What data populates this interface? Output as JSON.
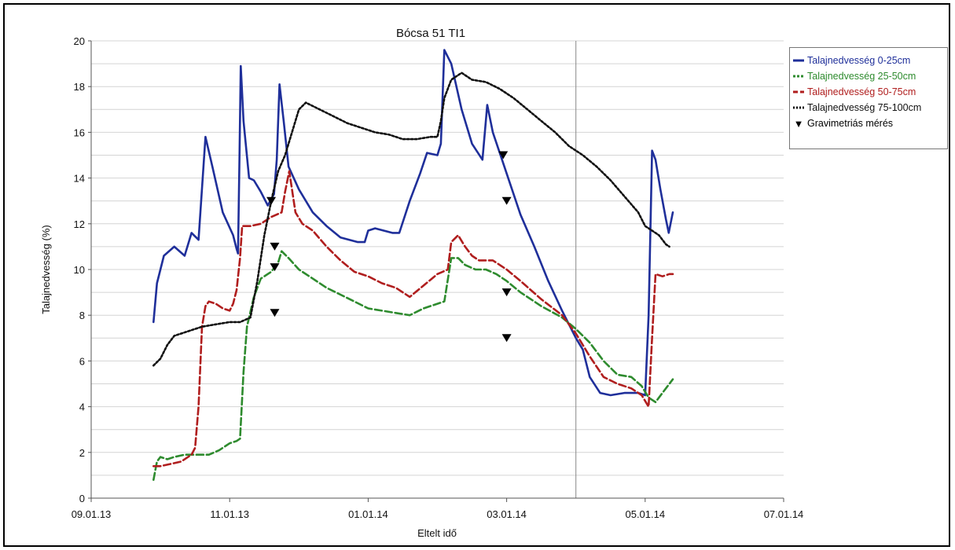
{
  "chart_data": {
    "type": "line",
    "title": "Bócsa 51 TI1",
    "xlabel": "Eltelt idő",
    "ylabel": "Talajnedvesség (%)",
    "x_axis": {
      "ticks": [
        "09.01.13",
        "11.01.13",
        "01.01.14",
        "03.01.14",
        "05.01.14",
        "07.01.14"
      ],
      "range_months": [
        0,
        10
      ],
      "vertical_marker_month": 7.0
    },
    "y_axis": {
      "ylim": [
        0,
        20
      ],
      "ticks": [
        0,
        2,
        4,
        6,
        8,
        10,
        12,
        14,
        16,
        18,
        20
      ]
    },
    "grid": "horizontal every 1 unit",
    "legend_position": "right",
    "series": [
      {
        "name": "Talajnedvesség 0-25cm",
        "color": "#1f2f9a",
        "style": "solid",
        "points": [
          [
            0.9,
            7.7
          ],
          [
            0.95,
            9.4
          ],
          [
            1.05,
            10.6
          ],
          [
            1.2,
            11.0
          ],
          [
            1.35,
            10.6
          ],
          [
            1.45,
            11.6
          ],
          [
            1.55,
            11.3
          ],
          [
            1.65,
            15.8
          ],
          [
            1.75,
            14.5
          ],
          [
            1.9,
            12.5
          ],
          [
            2.05,
            11.5
          ],
          [
            2.1,
            10.9
          ],
          [
            2.12,
            10.7
          ],
          [
            2.14,
            14.5
          ],
          [
            2.16,
            18.9
          ],
          [
            2.2,
            16.5
          ],
          [
            2.28,
            14.0
          ],
          [
            2.35,
            13.9
          ],
          [
            2.45,
            13.4
          ],
          [
            2.55,
            12.8
          ],
          [
            2.64,
            13.3
          ],
          [
            2.68,
            14.8
          ],
          [
            2.72,
            18.1
          ],
          [
            2.78,
            16.5
          ],
          [
            2.85,
            14.5
          ],
          [
            3.0,
            13.5
          ],
          [
            3.2,
            12.5
          ],
          [
            3.4,
            11.9
          ],
          [
            3.6,
            11.4
          ],
          [
            3.85,
            11.2
          ],
          [
            3.95,
            11.2
          ],
          [
            4.0,
            11.7
          ],
          [
            4.1,
            11.8
          ],
          [
            4.35,
            11.6
          ],
          [
            4.45,
            11.6
          ],
          [
            4.6,
            13.0
          ],
          [
            4.75,
            14.2
          ],
          [
            4.85,
            15.1
          ],
          [
            5.0,
            15.0
          ],
          [
            5.05,
            15.5
          ],
          [
            5.1,
            19.6
          ],
          [
            5.2,
            19.0
          ],
          [
            5.35,
            17.0
          ],
          [
            5.5,
            15.5
          ],
          [
            5.65,
            14.8
          ],
          [
            5.72,
            17.2
          ],
          [
            5.8,
            16.0
          ],
          [
            6.0,
            14.2
          ],
          [
            6.2,
            12.4
          ],
          [
            6.4,
            11.0
          ],
          [
            6.6,
            9.5
          ],
          [
            6.8,
            8.2
          ],
          [
            7.0,
            7.0
          ],
          [
            7.1,
            6.5
          ],
          [
            7.2,
            5.3
          ],
          [
            7.35,
            4.6
          ],
          [
            7.5,
            4.5
          ],
          [
            7.7,
            4.6
          ],
          [
            7.9,
            4.6
          ],
          [
            8.0,
            4.5
          ],
          [
            8.05,
            8.0
          ],
          [
            8.1,
            15.2
          ],
          [
            8.15,
            14.8
          ],
          [
            8.22,
            13.5
          ],
          [
            8.3,
            12.2
          ],
          [
            8.34,
            11.6
          ],
          [
            8.4,
            12.5
          ]
        ]
      },
      {
        "name": "Talajnedvesség 25-50cm",
        "color": "#2e8b2e",
        "style": "dashed",
        "points": [
          [
            0.9,
            0.8
          ],
          [
            0.95,
            1.6
          ],
          [
            1.0,
            1.8
          ],
          [
            1.1,
            1.7
          ],
          [
            1.2,
            1.8
          ],
          [
            1.35,
            1.9
          ],
          [
            1.5,
            1.9
          ],
          [
            1.7,
            1.9
          ],
          [
            1.85,
            2.1
          ],
          [
            2.0,
            2.4
          ],
          [
            2.1,
            2.5
          ],
          [
            2.15,
            2.6
          ],
          [
            2.2,
            5.5
          ],
          [
            2.25,
            7.5
          ],
          [
            2.35,
            8.8
          ],
          [
            2.45,
            9.6
          ],
          [
            2.6,
            9.9
          ],
          [
            2.7,
            10.3
          ],
          [
            2.75,
            10.8
          ],
          [
            2.85,
            10.5
          ],
          [
            3.0,
            10.0
          ],
          [
            3.2,
            9.6
          ],
          [
            3.4,
            9.2
          ],
          [
            3.6,
            8.9
          ],
          [
            3.8,
            8.6
          ],
          [
            4.0,
            8.3
          ],
          [
            4.2,
            8.2
          ],
          [
            4.4,
            8.1
          ],
          [
            4.6,
            8.0
          ],
          [
            4.8,
            8.3
          ],
          [
            5.0,
            8.5
          ],
          [
            5.1,
            8.6
          ],
          [
            5.2,
            10.5
          ],
          [
            5.3,
            10.5
          ],
          [
            5.4,
            10.2
          ],
          [
            5.55,
            10.0
          ],
          [
            5.7,
            10.0
          ],
          [
            5.85,
            9.8
          ],
          [
            6.0,
            9.5
          ],
          [
            6.2,
            9.0
          ],
          [
            6.5,
            8.4
          ],
          [
            6.8,
            7.9
          ],
          [
            7.0,
            7.4
          ],
          [
            7.2,
            6.8
          ],
          [
            7.4,
            6.0
          ],
          [
            7.6,
            5.4
          ],
          [
            7.8,
            5.3
          ],
          [
            7.95,
            4.9
          ],
          [
            8.05,
            4.4
          ],
          [
            8.15,
            4.2
          ],
          [
            8.25,
            4.6
          ],
          [
            8.35,
            5.0
          ],
          [
            8.4,
            5.2
          ]
        ]
      },
      {
        "name": "Talajnedvesség 50-75cm",
        "color": "#b01e1e",
        "style": "dashed",
        "points": [
          [
            0.9,
            1.4
          ],
          [
            1.0,
            1.4
          ],
          [
            1.15,
            1.5
          ],
          [
            1.3,
            1.6
          ],
          [
            1.45,
            1.9
          ],
          [
            1.5,
            2.2
          ],
          [
            1.55,
            4.0
          ],
          [
            1.6,
            7.5
          ],
          [
            1.65,
            8.4
          ],
          [
            1.7,
            8.6
          ],
          [
            1.8,
            8.5
          ],
          [
            1.9,
            8.3
          ],
          [
            2.0,
            8.2
          ],
          [
            2.05,
            8.5
          ],
          [
            2.1,
            9.1
          ],
          [
            2.15,
            10.5
          ],
          [
            2.18,
            11.9
          ],
          [
            2.3,
            11.9
          ],
          [
            2.45,
            12.0
          ],
          [
            2.6,
            12.3
          ],
          [
            2.75,
            12.5
          ],
          [
            2.8,
            13.4
          ],
          [
            2.86,
            14.3
          ],
          [
            2.95,
            12.5
          ],
          [
            3.05,
            12.0
          ],
          [
            3.2,
            11.7
          ],
          [
            3.4,
            11.0
          ],
          [
            3.6,
            10.4
          ],
          [
            3.8,
            9.9
          ],
          [
            4.0,
            9.7
          ],
          [
            4.2,
            9.4
          ],
          [
            4.4,
            9.2
          ],
          [
            4.6,
            8.8
          ],
          [
            4.8,
            9.3
          ],
          [
            5.0,
            9.8
          ],
          [
            5.15,
            10.0
          ],
          [
            5.2,
            11.2
          ],
          [
            5.3,
            11.5
          ],
          [
            5.4,
            11.0
          ],
          [
            5.5,
            10.6
          ],
          [
            5.6,
            10.4
          ],
          [
            5.8,
            10.4
          ],
          [
            6.0,
            10.0
          ],
          [
            6.2,
            9.5
          ],
          [
            6.5,
            8.7
          ],
          [
            6.8,
            8.0
          ],
          [
            7.0,
            7.2
          ],
          [
            7.2,
            6.2
          ],
          [
            7.4,
            5.3
          ],
          [
            7.6,
            5.0
          ],
          [
            7.8,
            4.8
          ],
          [
            7.95,
            4.5
          ],
          [
            8.05,
            4.0
          ],
          [
            8.1,
            7.0
          ],
          [
            8.15,
            9.8
          ],
          [
            8.25,
            9.7
          ],
          [
            8.35,
            9.8
          ],
          [
            8.4,
            9.8
          ]
        ]
      },
      {
        "name": "Talajnedvesség 75-100cm",
        "color": "#111111",
        "style": "dotted",
        "points": [
          [
            0.9,
            5.8
          ],
          [
            1.0,
            6.1
          ],
          [
            1.1,
            6.7
          ],
          [
            1.2,
            7.1
          ],
          [
            1.4,
            7.3
          ],
          [
            1.6,
            7.5
          ],
          [
            1.8,
            7.6
          ],
          [
            2.0,
            7.7
          ],
          [
            2.15,
            7.7
          ],
          [
            2.3,
            7.9
          ],
          [
            2.4,
            9.5
          ],
          [
            2.5,
            11.5
          ],
          [
            2.6,
            13.0
          ],
          [
            2.7,
            14.3
          ],
          [
            2.8,
            15.0
          ],
          [
            2.9,
            16.0
          ],
          [
            3.0,
            17.0
          ],
          [
            3.1,
            17.3
          ],
          [
            3.3,
            17.0
          ],
          [
            3.5,
            16.7
          ],
          [
            3.7,
            16.4
          ],
          [
            3.9,
            16.2
          ],
          [
            4.1,
            16.0
          ],
          [
            4.3,
            15.9
          ],
          [
            4.5,
            15.7
          ],
          [
            4.7,
            15.7
          ],
          [
            4.9,
            15.8
          ],
          [
            5.0,
            15.8
          ],
          [
            5.05,
            16.5
          ],
          [
            5.1,
            17.5
          ],
          [
            5.2,
            18.3
          ],
          [
            5.35,
            18.6
          ],
          [
            5.5,
            18.3
          ],
          [
            5.7,
            18.2
          ],
          [
            5.9,
            17.9
          ],
          [
            6.1,
            17.5
          ],
          [
            6.3,
            17.0
          ],
          [
            6.5,
            16.5
          ],
          [
            6.7,
            16.0
          ],
          [
            6.9,
            15.4
          ],
          [
            7.1,
            15.0
          ],
          [
            7.3,
            14.5
          ],
          [
            7.5,
            13.9
          ],
          [
            7.7,
            13.2
          ],
          [
            7.9,
            12.5
          ],
          [
            8.0,
            11.9
          ],
          [
            8.1,
            11.7
          ],
          [
            8.2,
            11.5
          ],
          [
            8.3,
            11.1
          ],
          [
            8.35,
            11.0
          ]
        ]
      },
      {
        "name": "Gravimetriás mérés",
        "color": "#000000",
        "style": "markers",
        "marker": "triangle-down",
        "points": [
          [
            2.6,
            13.0
          ],
          [
            2.65,
            11.0
          ],
          [
            2.65,
            10.1
          ],
          [
            2.65,
            8.1
          ],
          [
            5.95,
            15.0
          ],
          [
            6.0,
            13.0
          ],
          [
            6.0,
            9.0
          ],
          [
            6.0,
            7.0
          ]
        ]
      }
    ]
  }
}
